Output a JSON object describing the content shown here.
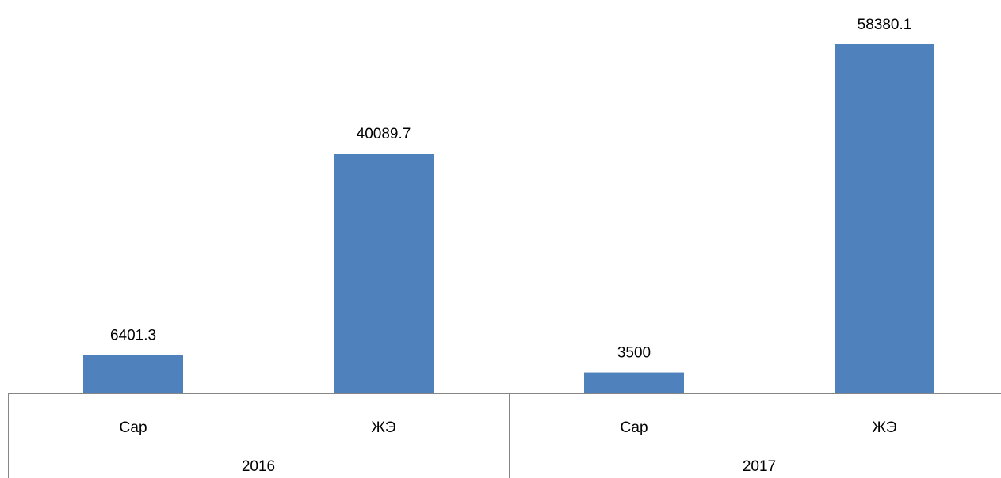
{
  "chart_data": {
    "type": "bar",
    "categories": [
      "Сар",
      "ЖЭ",
      "Сар",
      "ЖЭ"
    ],
    "groups": [
      "2016",
      "2017"
    ],
    "values": [
      6401.3,
      40089.7,
      3500,
      58380.1
    ],
    "color": "#4f81bd"
  }
}
